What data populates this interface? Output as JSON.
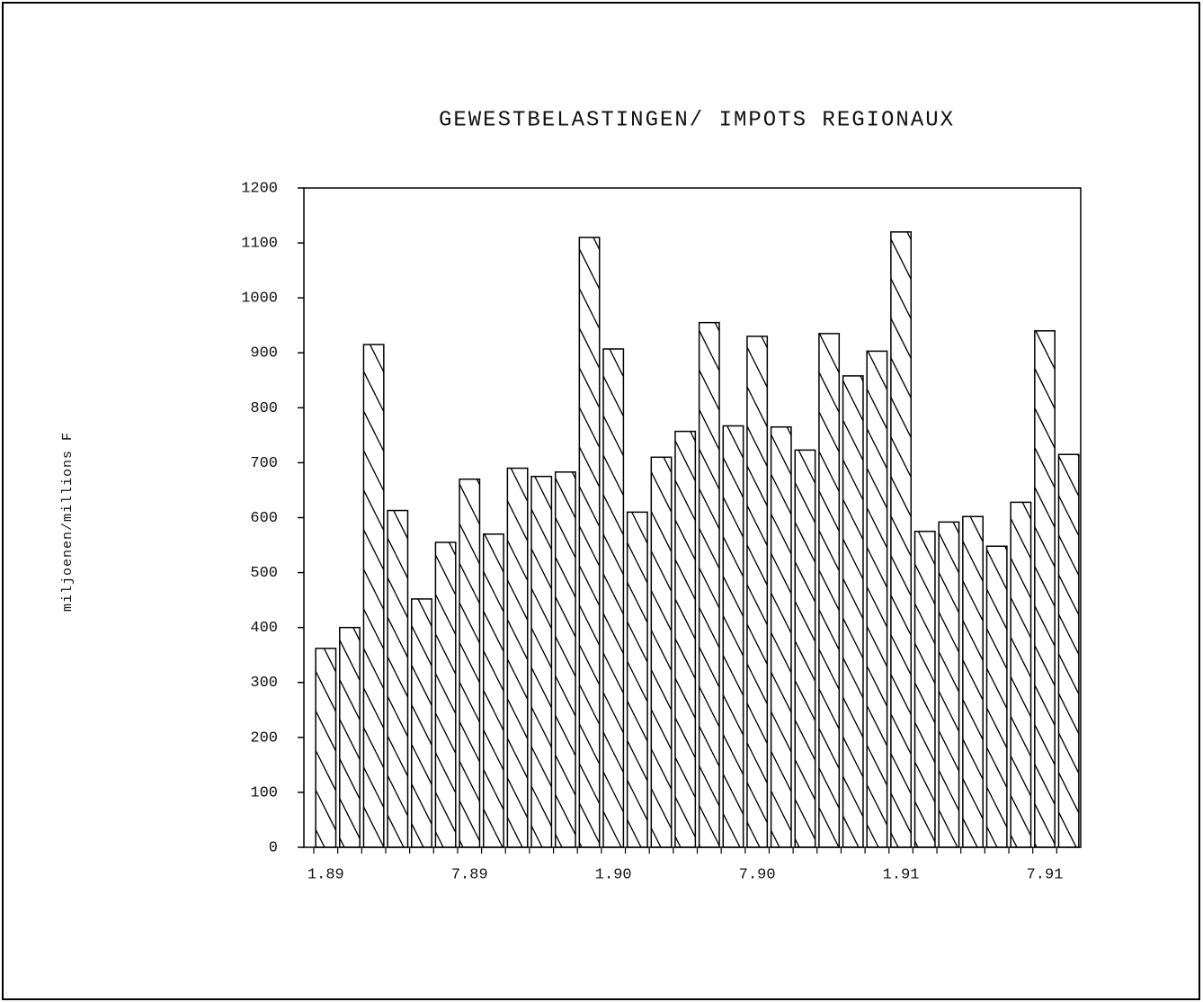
{
  "chart_data": {
    "type": "bar",
    "title": "GEWESTBELASTINGEN/ IMPOTS REGIONAUX",
    "y_label": "miljoenen/millions F",
    "categories": [
      "1.89",
      null,
      null,
      null,
      null,
      null,
      "7.89",
      null,
      null,
      null,
      null,
      null,
      "1.90",
      null,
      null,
      null,
      null,
      null,
      "7.90",
      null,
      null,
      null,
      null,
      null,
      "1.91",
      null,
      null,
      null,
      null,
      null,
      "7.91",
      null
    ],
    "values": [
      362,
      400,
      915,
      613,
      452,
      555,
      670,
      570,
      690,
      675,
      683,
      1110,
      907,
      610,
      710,
      757,
      955,
      767,
      930,
      765,
      723,
      935,
      858,
      903,
      1120,
      575,
      592,
      602,
      548,
      628,
      940,
      715
    ],
    "color": "#000000",
    "ylim": [
      0,
      1200
    ],
    "yticks": [
      0,
      100,
      200,
      300,
      400,
      500,
      600,
      700,
      800,
      900,
      1000,
      1100,
      1200
    ],
    "grid": false
  }
}
